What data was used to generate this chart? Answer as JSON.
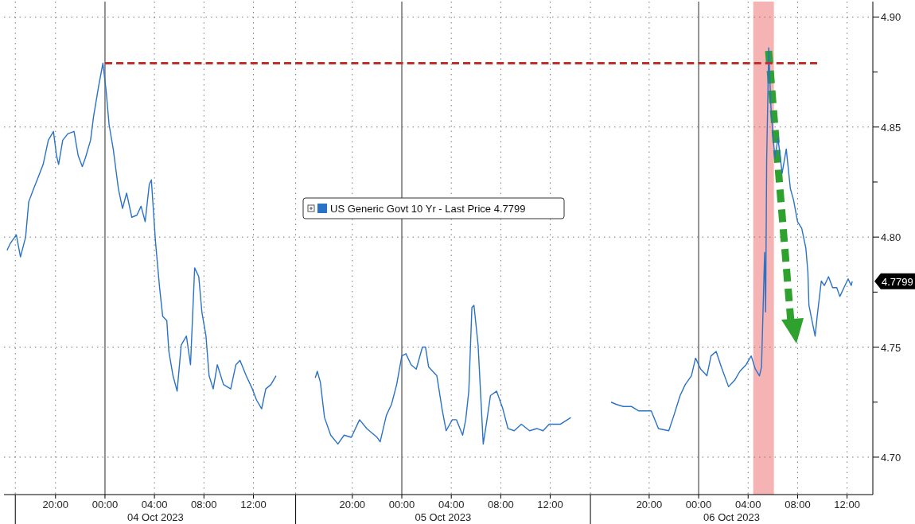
{
  "chart_data": {
    "type": "line",
    "xlim": [
      "2023-10-03T15:50",
      "2023-10-06T14:05"
    ],
    "xticks": [
      {
        "value": "2023-10-03T16:45",
        "label": null
      },
      {
        "value": "2023-10-03T20:00",
        "label": "20:00"
      },
      {
        "value": "2023-10-04T00:00",
        "label": "00:00"
      },
      {
        "value": "2023-10-04T04:00",
        "label": "04:00"
      },
      {
        "value": "2023-10-04T08:00",
        "label": "08:00"
      },
      {
        "value": "2023-10-04T12:00",
        "label": "12:00"
      },
      {
        "value": "2023-10-04T15:25",
        "label": null
      },
      {
        "value": "2023-10-04T20:00",
        "label": "20:00"
      },
      {
        "value": "2023-10-05T00:00",
        "label": "00:00"
      },
      {
        "value": "2023-10-05T04:00",
        "label": "04:00"
      },
      {
        "value": "2023-10-05T08:00",
        "label": "08:00"
      },
      {
        "value": "2023-10-05T12:00",
        "label": "12:00"
      },
      {
        "value": "2023-10-05T15:15",
        "label": null
      },
      {
        "value": "2023-10-05T20:00",
        "label": "20:00"
      },
      {
        "value": "2023-10-06T00:00",
        "label": "00:00"
      },
      {
        "value": "2023-10-06T04:00",
        "label": "04:00"
      },
      {
        "value": "2023-10-06T08:00",
        "label": "08:00"
      },
      {
        "value": "2023-10-06T12:00",
        "label": "12:00"
      }
    ],
    "ylim": [
      4.683,
      4.907
    ],
    "yticks": [
      {
        "value": 4.7,
        "label": "4.70"
      },
      {
        "value": 4.725,
        "label": null
      },
      {
        "value": 4.75,
        "label": "4.75"
      },
      {
        "value": 4.775,
        "label": null
      },
      {
        "value": 4.8,
        "label": "4.80"
      },
      {
        "value": 4.825,
        "label": null
      },
      {
        "value": 4.85,
        "label": "4.85"
      },
      {
        "value": 4.875,
        "label": null
      },
      {
        "value": 4.9,
        "label": "4.90"
      }
    ],
    "grid": true,
    "legend": "center",
    "series": [
      {
        "name": "US Generic Govt 10 Yr - Last Price 4.7799",
        "color": "#2a72c8",
        "x": [
          "2023-10-03T16:05",
          "2023-10-03T16:20",
          "2023-10-03T16:50",
          "2023-10-03T17:10",
          "2023-10-03T17:35",
          "2023-10-03T17:50",
          "2023-10-03T18:10",
          "2023-10-03T18:35",
          "2023-10-03T19:00",
          "2023-10-03T19:25",
          "2023-10-03T19:50",
          "2023-10-03T20:05",
          "2023-10-03T20:15",
          "2023-10-03T20:35",
          "2023-10-03T21:00",
          "2023-10-03T21:30",
          "2023-10-03T21:50",
          "2023-10-03T22:10",
          "2023-10-03T22:25",
          "2023-10-03T22:50",
          "2023-10-03T23:05",
          "2023-10-03T23:30",
          "2023-10-03T23:50",
          "2023-10-04T00:05",
          "2023-10-04T00:20",
          "2023-10-04T00:40",
          "2023-10-04T01:05",
          "2023-10-04T01:25",
          "2023-10-04T01:45",
          "2023-10-04T02:10",
          "2023-10-04T02:35",
          "2023-10-04T02:55",
          "2023-10-04T03:15",
          "2023-10-04T03:35",
          "2023-10-04T03:45",
          "2023-10-04T04:05",
          "2023-10-04T04:25",
          "2023-10-04T04:40",
          "2023-10-04T05:00",
          "2023-10-04T05:10",
          "2023-10-04T05:30",
          "2023-10-04T05:50",
          "2023-10-04T06:10",
          "2023-10-04T06:35",
          "2023-10-04T06:55",
          "2023-10-04T07:15",
          "2023-10-04T07:35",
          "2023-10-04T07:50",
          "2023-10-04T08:10",
          "2023-10-04T08:25",
          "2023-10-04T08:45",
          "2023-10-04T09:05",
          "2023-10-04T09:35",
          "2023-10-04T10:10",
          "2023-10-04T10:35",
          "2023-10-04T10:55",
          "2023-10-04T11:25",
          "2023-10-04T11:55",
          "2023-10-04T12:15",
          "2023-10-04T12:40",
          "2023-10-04T13:00",
          "2023-10-04T13:25",
          "2023-10-04T13:50",
          "2023-10-04T17:00",
          "2023-10-04T17:10",
          "2023-10-04T17:25",
          "2023-10-04T17:45",
          "2023-10-04T18:15",
          "2023-10-04T18:50",
          "2023-10-04T19:20",
          "2023-10-04T19:55",
          "2023-10-04T20:35",
          "2023-10-04T21:10",
          "2023-10-04T22:00",
          "2023-10-04T22:15",
          "2023-10-04T22:45",
          "2023-10-04T23:10",
          "2023-10-04T23:35",
          "2023-10-05T00:00",
          "2023-10-05T00:20",
          "2023-10-05T00:45",
          "2023-10-05T01:10",
          "2023-10-05T01:40",
          "2023-10-05T01:55",
          "2023-10-05T02:10",
          "2023-10-05T02:50",
          "2023-10-05T03:15",
          "2023-10-05T03:35",
          "2023-10-05T04:05",
          "2023-10-05T04:25",
          "2023-10-05T04:55",
          "2023-10-05T05:10",
          "2023-10-05T05:25",
          "2023-10-05T05:40",
          "2023-10-05T05:50",
          "2023-10-05T06:10",
          "2023-10-05T06:20",
          "2023-10-05T06:35",
          "2023-10-05T06:50",
          "2023-10-05T07:10",
          "2023-10-05T07:40",
          "2023-10-05T08:10",
          "2023-10-05T08:35",
          "2023-10-05T09:05",
          "2023-10-05T09:40",
          "2023-10-05T10:20",
          "2023-10-05T10:55",
          "2023-10-05T11:25",
          "2023-10-05T11:55",
          "2023-10-05T12:50",
          "2023-10-05T13:40",
          "2023-10-05T16:55",
          "2023-10-05T17:20",
          "2023-10-05T17:55",
          "2023-10-05T18:35",
          "2023-10-05T19:10",
          "2023-10-05T20:10",
          "2023-10-05T20:45",
          "2023-10-05T21:35",
          "2023-10-05T22:00",
          "2023-10-05T22:30",
          "2023-10-05T22:55",
          "2023-10-05T23:25",
          "2023-10-05T23:45",
          "2023-10-06T00:10",
          "2023-10-06T00:40",
          "2023-10-06T01:00",
          "2023-10-06T01:25",
          "2023-10-06T01:50",
          "2023-10-06T02:25",
          "2023-10-06T02:55",
          "2023-10-06T03:20",
          "2023-10-06T03:50",
          "2023-10-06T04:15",
          "2023-10-06T04:35",
          "2023-10-06T04:55",
          "2023-10-06T05:05",
          "2023-10-06T05:20",
          "2023-10-06T05:25",
          "2023-10-06T05:30",
          "2023-10-06T05:40",
          "2023-10-06T05:50",
          "2023-10-06T06:00",
          "2023-10-06T06:10",
          "2023-10-06T06:25",
          "2023-10-06T06:45",
          "2023-10-06T07:05",
          "2023-10-06T07:25",
          "2023-10-06T07:40",
          "2023-10-06T08:00",
          "2023-10-06T08:20",
          "2023-10-06T08:40",
          "2023-10-06T08:50",
          "2023-10-06T08:55",
          "2023-10-06T09:10",
          "2023-10-06T09:25",
          "2023-10-06T09:35",
          "2023-10-06T09:55",
          "2023-10-06T10:10",
          "2023-10-06T10:30",
          "2023-10-06T10:50",
          "2023-10-06T11:10",
          "2023-10-06T11:25",
          "2023-10-06T11:45",
          "2023-10-06T12:05",
          "2023-10-06T12:20",
          "2023-10-06T12:25"
        ],
        "values": [
          4.794,
          4.797,
          4.801,
          4.791,
          4.8,
          4.816,
          4.821,
          4.827,
          4.833,
          4.844,
          4.848,
          4.837,
          4.833,
          4.844,
          4.847,
          4.848,
          4.837,
          4.832,
          4.836,
          4.844,
          4.855,
          4.869,
          4.879,
          4.867,
          4.851,
          4.84,
          4.822,
          4.813,
          4.82,
          4.809,
          4.81,
          4.814,
          4.807,
          4.824,
          4.826,
          4.798,
          4.777,
          4.764,
          4.762,
          4.748,
          4.737,
          4.73,
          4.751,
          4.755,
          4.742,
          4.786,
          4.782,
          4.766,
          4.755,
          4.737,
          4.731,
          4.742,
          4.733,
          4.731,
          4.742,
          4.744,
          4.737,
          4.731,
          4.726,
          4.722,
          4.731,
          4.733,
          4.737,
          4.736,
          4.739,
          4.734,
          4.718,
          4.71,
          4.706,
          4.71,
          4.709,
          4.717,
          4.713,
          4.709,
          4.707,
          4.719,
          4.724,
          4.733,
          4.746,
          4.747,
          4.742,
          4.74,
          4.75,
          4.75,
          4.741,
          4.737,
          4.722,
          4.712,
          4.717,
          4.717,
          4.71,
          4.717,
          4.73,
          4.768,
          4.769,
          4.751,
          4.733,
          4.706,
          4.715,
          4.728,
          4.73,
          4.722,
          4.713,
          4.712,
          4.715,
          4.712,
          4.713,
          4.712,
          4.715,
          4.715,
          4.718,
          4.725,
          4.724,
          4.723,
          4.723,
          4.721,
          4.721,
          4.713,
          4.712,
          4.719,
          4.728,
          4.733,
          4.737,
          4.745,
          4.74,
          4.737,
          4.746,
          4.748,
          4.741,
          4.732,
          4.735,
          4.739,
          4.742,
          4.746,
          4.74,
          4.737,
          4.741,
          4.793,
          4.766,
          4.835,
          4.886,
          4.86,
          4.847,
          4.836,
          4.845,
          4.829,
          4.84,
          4.822,
          4.817,
          4.807,
          4.804,
          4.795,
          4.784,
          4.769,
          4.762,
          4.755,
          4.764,
          4.78,
          4.778,
          4.782,
          4.777,
          4.777,
          4.773,
          4.777,
          4.781,
          4.778,
          4.7799
        ]
      },
      {
        "color": "#c0302b",
        "line_style": "dashed",
        "x": [
          "2023-10-04T00:00",
          "2023-10-06T09:35"
        ],
        "values": [
          4.879,
          4.879
        ]
      }
    ],
    "bands": [
      {
        "axis": "x",
        "from": "2023-10-06T04:25",
        "to": "2023-10-06T06:05",
        "color": "#f4a6a6"
      }
    ],
    "annotations": [
      "04 Oct 2023",
      "05 Oct 2023",
      "06 Oct 2023",
      "4.7799"
    ]
  }
}
